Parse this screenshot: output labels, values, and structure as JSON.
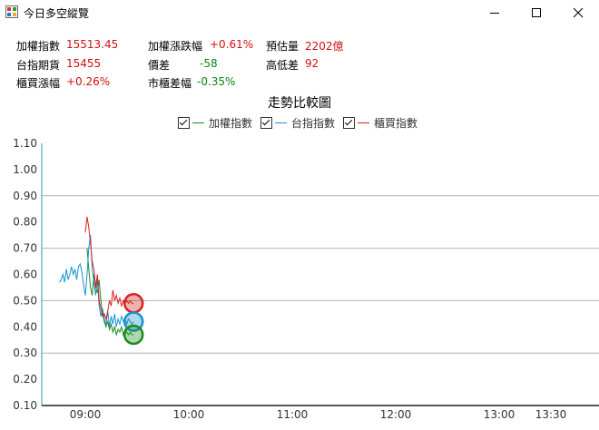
{
  "window": {
    "title": "今日多空縱覽"
  },
  "stats": [
    {
      "label": "加權指數",
      "value": "15513.45",
      "color": "#d01010"
    },
    {
      "label": "加權漲跌幅",
      "value": "+0.61%",
      "color": "#d01010"
    },
    {
      "label": "預估量",
      "value": "2202億",
      "color": "#d01010"
    },
    {
      "label": "台指期貨",
      "value": "15455",
      "color": "#d01010"
    },
    {
      "label": "價差",
      "value": "-58",
      "color": "#108010"
    },
    {
      "label": "高低差",
      "value": "92",
      "color": "#d01010"
    },
    {
      "label": "櫃買漲幅",
      "value": "+0.26%",
      "color": "#d01010"
    },
    {
      "label": "市櫃差幅",
      "value": "-0.35%",
      "color": "#108010"
    }
  ],
  "chart_data": {
    "type": "line",
    "title": "走勢比較圖",
    "xlabel": "",
    "ylabel": "",
    "x_ticks": [
      "09:00",
      "10:00",
      "11:00",
      "12:00",
      "13:00",
      "13:30"
    ],
    "y_ticks": [
      "0.10",
      "0.20",
      "0.30",
      "0.40",
      "0.50",
      "0.60",
      "0.70",
      "0.80",
      "0.90",
      "1.00",
      "1.10"
    ],
    "ylim": [
      0.1,
      1.1
    ],
    "grid": "horizontal at 0.30, 0.50, 0.70, 0.90",
    "legend": "top-center",
    "series": [
      {
        "name": "加權指數",
        "color": "#1a8a1a",
        "x": [
          "09:01",
          "09:02",
          "09:03",
          "09:04",
          "09:05",
          "09:06",
          "09:07",
          "09:08",
          "09:09",
          "09:10",
          "09:11",
          "09:12",
          "09:13",
          "09:14",
          "09:15",
          "09:16",
          "09:17",
          "09:18",
          "09:19",
          "09:20",
          "09:21",
          "09:22",
          "09:23",
          "09:24",
          "09:25",
          "09:26",
          "09:27",
          "09:28"
        ],
        "y": [
          0.7,
          0.62,
          0.55,
          0.52,
          0.6,
          0.55,
          0.53,
          0.58,
          0.5,
          0.45,
          0.42,
          0.4,
          0.42,
          0.39,
          0.41,
          0.38,
          0.4,
          0.37,
          0.39,
          0.38,
          0.4,
          0.37,
          0.39,
          0.38,
          0.37,
          0.38,
          0.37,
          0.37
        ]
      },
      {
        "name": "台指指數",
        "color": "#1a90d0",
        "x": [
          "08:45",
          "08:46",
          "08:47",
          "08:48",
          "08:49",
          "08:50",
          "08:51",
          "08:52",
          "08:53",
          "08:54",
          "08:55",
          "08:56",
          "08:57",
          "08:58",
          "08:59",
          "09:00",
          "09:01",
          "09:02",
          "09:03",
          "09:04",
          "09:05",
          "09:06",
          "09:07",
          "09:08",
          "09:09",
          "09:10",
          "09:11",
          "09:12",
          "09:13",
          "09:14",
          "09:15",
          "09:16",
          "09:17",
          "09:18",
          "09:19",
          "09:20",
          "09:21",
          "09:22",
          "09:23",
          "09:24",
          "09:25",
          "09:26",
          "09:27",
          "09:28"
        ],
        "y": [
          0.57,
          0.58,
          0.6,
          0.57,
          0.62,
          0.58,
          0.6,
          0.63,
          0.6,
          0.62,
          0.58,
          0.63,
          0.64,
          0.61,
          0.56,
          0.52,
          0.6,
          0.7,
          0.75,
          0.62,
          0.57,
          0.52,
          0.58,
          0.48,
          0.44,
          0.47,
          0.43,
          0.41,
          0.46,
          0.4,
          0.44,
          0.41,
          0.45,
          0.4,
          0.43,
          0.41,
          0.44,
          0.42,
          0.43,
          0.41,
          0.43,
          0.42,
          0.41,
          0.42
        ]
      },
      {
        "name": "櫃買指數",
        "color": "#d82020",
        "x": [
          "09:00",
          "09:01",
          "09:02",
          "09:03",
          "09:04",
          "09:05",
          "09:06",
          "09:07",
          "09:08",
          "09:09",
          "09:10",
          "09:11",
          "09:12",
          "09:13",
          "09:14",
          "09:15",
          "09:16",
          "09:17",
          "09:18",
          "09:19",
          "09:20",
          "09:21",
          "09:22",
          "09:23",
          "09:24",
          "09:25",
          "09:26",
          "09:27",
          "09:28"
        ],
        "y": [
          0.76,
          0.82,
          0.78,
          0.72,
          0.65,
          0.62,
          0.55,
          0.6,
          0.5,
          0.47,
          0.44,
          0.45,
          0.43,
          0.46,
          0.5,
          0.48,
          0.54,
          0.5,
          0.52,
          0.49,
          0.51,
          0.48,
          0.5,
          0.49,
          0.5,
          0.49,
          0.5,
          0.49,
          0.49
        ]
      }
    ],
    "end_markers": [
      {
        "series": "櫃買指數",
        "x": "09:28",
        "y": 0.49
      },
      {
        "series": "台指指數",
        "x": "09:28",
        "y": 0.42
      },
      {
        "series": "加權指數",
        "x": "09:28",
        "y": 0.37
      }
    ]
  }
}
